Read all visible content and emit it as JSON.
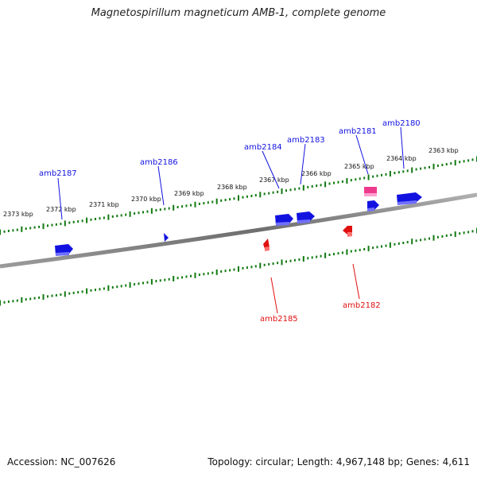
{
  "title": "Magnetospirillum magneticum AMB-1, complete genome",
  "footer": {
    "accession": "Accession: NC_007626",
    "summary": "Topology: circular; Length: 4,967,148 bp; Genes: 4,611"
  },
  "colors": {
    "forward": "#1212e0",
    "reverse": "#e01010",
    "highlight": "#ee3a8c",
    "tick": "#117a11",
    "backbone": "#808080"
  },
  "scale_labels": [
    "2373 kbp",
    "2372 kbp",
    "2371 kbp",
    "2370 kbp",
    "2369 kbp",
    "2368 kbp",
    "2367 kbp",
    "2366 kbp",
    "2365 kbp",
    "2364 kbp",
    "2363 kbp"
  ],
  "genes_forward": [
    "amb2187",
    "amb2186",
    "amb2184",
    "amb2183",
    "amb2181",
    "amb2180"
  ],
  "genes_reverse": [
    "amb2185",
    "amb2182"
  ]
}
